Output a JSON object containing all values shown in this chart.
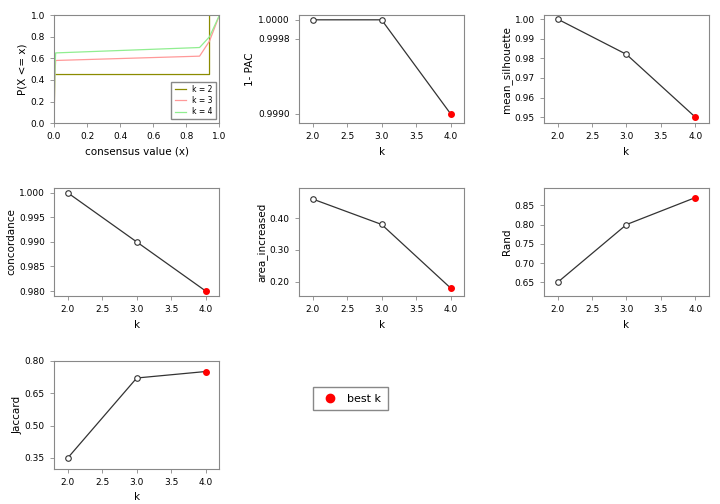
{
  "ecdf": {
    "k2_color": "#8B8B00",
    "k3_color": "#FF9999",
    "k4_color": "#90EE90",
    "xlabel": "consensus value (x)",
    "ylabel": "P(X <= x)"
  },
  "pac": {
    "k": [
      2,
      3,
      4
    ],
    "values": [
      1.0,
      1.0,
      0.999
    ],
    "best_k": 4,
    "xlabel": "k",
    "ylabel": "1- PAC",
    "ylim": [
      0.9989,
      1.00005
    ],
    "yticks": [
      0.999,
      0.9998,
      1.0
    ],
    "ytick_labels": [
      "0.9990",
      "0.9998",
      "1.0000"
    ]
  },
  "silhouette": {
    "k": [
      2,
      3,
      4
    ],
    "values": [
      1.0,
      0.982,
      0.95
    ],
    "best_k": 4,
    "xlabel": "k",
    "ylabel": "mean_silhouette",
    "ylim": [
      0.947,
      1.002
    ],
    "yticks": [
      0.95,
      0.96,
      0.97,
      0.98,
      0.99,
      1.0
    ],
    "ytick_labels": [
      "0.95",
      "0.96",
      "0.97",
      "0.98",
      "0.99",
      "1.00"
    ]
  },
  "concordance": {
    "k": [
      2,
      3,
      4
    ],
    "values": [
      1.0,
      0.99,
      0.98
    ],
    "best_k": 4,
    "xlabel": "k",
    "ylabel": "concordance",
    "ylim": [
      0.979,
      1.001
    ],
    "yticks": [
      0.98,
      0.985,
      0.99,
      0.995,
      1.0
    ],
    "ytick_labels": [
      "0.980",
      "0.985",
      "0.990",
      "0.995",
      "1.000"
    ]
  },
  "area_increased": {
    "k": [
      2,
      3,
      4
    ],
    "values": [
      0.46,
      0.38,
      0.18
    ],
    "best_k": 4,
    "xlabel": "k",
    "ylabel": "area_increased",
    "ylim": [
      0.155,
      0.495
    ],
    "yticks": [
      0.2,
      0.3,
      0.4
    ],
    "ytick_labels": [
      "0.20",
      "0.30",
      "0.40"
    ]
  },
  "rand": {
    "k": [
      2,
      3,
      4
    ],
    "values": [
      0.65,
      0.8,
      0.87
    ],
    "best_k": 4,
    "xlabel": "k",
    "ylabel": "Rand",
    "ylim": [
      0.615,
      0.895
    ],
    "yticks": [
      0.65,
      0.7,
      0.75,
      0.8,
      0.85
    ],
    "ytick_labels": [
      "0.65",
      "0.70",
      "0.75",
      "0.80",
      "0.85"
    ]
  },
  "jaccard": {
    "k": [
      2,
      3,
      4
    ],
    "values": [
      0.35,
      0.72,
      0.75
    ],
    "best_k": 4,
    "xlabel": "k",
    "ylabel": "Jaccard",
    "ylim": [
      0.3,
      0.8
    ],
    "yticks": [
      0.35,
      0.5,
      0.65,
      0.8
    ],
    "ytick_labels": [
      "0.35",
      "0.50",
      "0.65",
      "0.80"
    ]
  },
  "best_k_color": "#FF0000",
  "line_color": "#333333",
  "bg_color": "white",
  "spine_color": "#888888",
  "tick_fontsize": 6.5,
  "label_fontsize": 7.5
}
